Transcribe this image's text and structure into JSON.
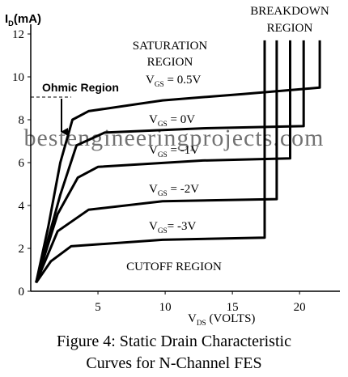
{
  "chart_data": {
    "type": "line",
    "title": [
      "Figure 4: Static Drain Characteristic",
      "Curves for N-Channel FES"
    ],
    "y_label": {
      "main": "I",
      "sub": "D",
      "rest": "(mA)"
    },
    "x_label": {
      "main": "V",
      "sub": "DS",
      "rest": " (VOLTS)"
    },
    "xlim": [
      0,
      23
    ],
    "ylim": [
      0,
      12
    ],
    "xticks": [
      5,
      10,
      15,
      20
    ],
    "yticks": [
      0,
      2,
      4,
      6,
      8,
      10,
      12
    ],
    "color": "#000000",
    "annotations": {
      "saturation": [
        "SATURATION",
        "REGION"
      ],
      "breakdown": [
        "BREAKDOWN",
        "REGION"
      ],
      "ohmic": "Ohmic Region",
      "cutoff": "CUTOFF REGION",
      "watermark": "bestengineeringprojects.com"
    },
    "series": [
      {
        "label": {
          "main": "V",
          "sub": "GS",
          "rest": " = 0.5V"
        },
        "x": [
          0.4,
          1.3,
          2.2,
          3.1,
          4.3,
          9.8,
          15.8,
          21.5,
          21.5
        ],
        "y": [
          0.4,
          3,
          6,
          8,
          8.4,
          8.9,
          9.2,
          9.5,
          11.7
        ]
      },
      {
        "label": {
          "main": "V",
          "sub": "GS",
          "rest": " = 0V"
        },
        "x": [
          0.4,
          2.2,
          3.4,
          5.5,
          12.8,
          20.3,
          20.3
        ],
        "y": [
          0.4,
          4.5,
          6.8,
          7.4,
          7.6,
          7.7,
          11.7
        ]
      },
      {
        "label": {
          "main": "V",
          "sub": "GS",
          "rest": " = -1V"
        },
        "x": [
          0.4,
          2,
          3.5,
          5,
          12.8,
          19.3,
          19.3
        ],
        "y": [
          0.4,
          3.6,
          5.3,
          5.8,
          6.1,
          6.2,
          11.7
        ]
      },
      {
        "label": {
          "main": "V",
          "sub": "GS",
          "rest": " = -2V"
        },
        "x": [
          0.4,
          2,
          4.3,
          9.8,
          18.3,
          18.3
        ],
        "y": [
          0.4,
          2.8,
          3.8,
          4.2,
          4.3,
          11.7
        ]
      },
      {
        "label": {
          "main": "V",
          "sub": "GS",
          "rest": "= -3V"
        },
        "x": [
          0.4,
          1.5,
          3,
          9.8,
          17.4,
          17.4
        ],
        "y": [
          0.4,
          1.4,
          2.1,
          2.4,
          2.5,
          11.7
        ]
      }
    ]
  }
}
